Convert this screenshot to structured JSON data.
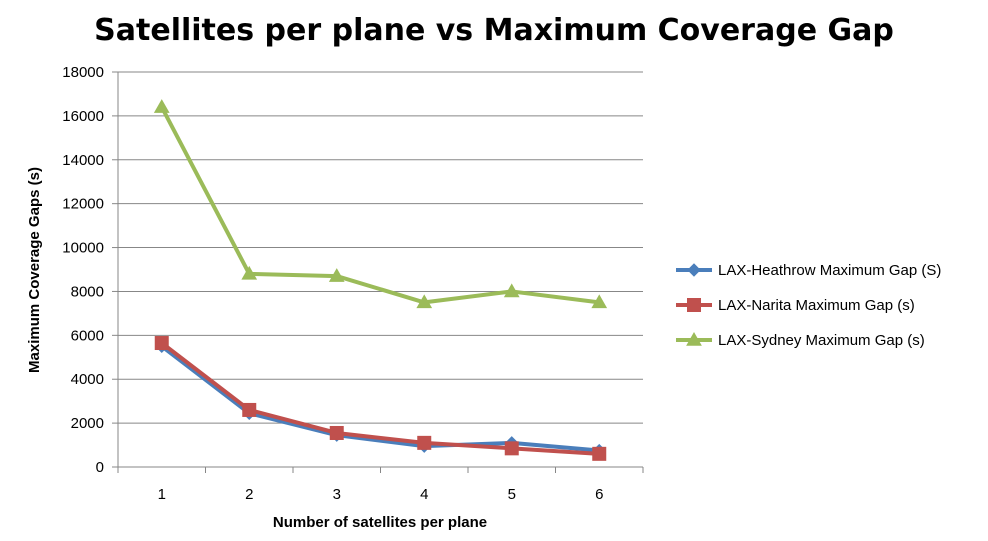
{
  "chart_data": {
    "type": "line",
    "title": "Satellites per plane vs Maximum Coverage Gap",
    "xlabel": "Number of satellites per plane",
    "ylabel": "Maximum Coverage Gaps (s)",
    "categories": [
      "1",
      "2",
      "3",
      "4",
      "5",
      "6"
    ],
    "ylim": [
      0,
      18000
    ],
    "yticks": [
      0,
      2000,
      4000,
      6000,
      8000,
      10000,
      12000,
      14000,
      16000,
      18000
    ],
    "grid": true,
    "legend_position": "right",
    "series": [
      {
        "name": "LAX-Heathrow Maximum Gap (S)",
        "values": [
          5500,
          2450,
          1450,
          950,
          1100,
          750
        ],
        "color": "#4A7EBB",
        "marker": "diamond"
      },
      {
        "name": "LAX-Narita Maximum Gap (s)",
        "values": [
          5650,
          2600,
          1550,
          1100,
          850,
          600
        ],
        "color": "#C0504D",
        "marker": "square"
      },
      {
        "name": "LAX-Sydney Maximum Gap (s)",
        "values": [
          16400,
          8800,
          8700,
          7500,
          8000,
          7500
        ],
        "color": "#9BBB59",
        "marker": "triangle"
      }
    ]
  }
}
